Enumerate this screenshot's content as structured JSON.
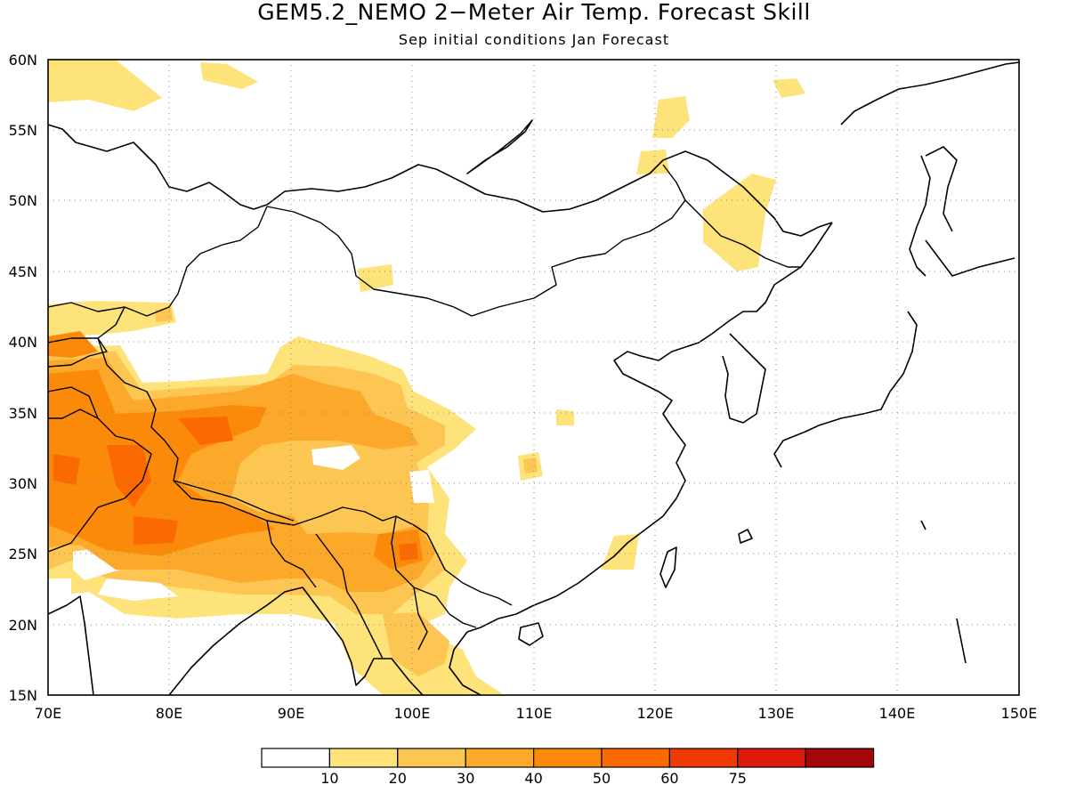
{
  "title": "GEM5.2_NEMO 2−Meter Air Temp. Forecast Skill",
  "subtitle": "Sep initial conditions  Jan Forecast",
  "map": {
    "lon_range": [
      70,
      150
    ],
    "lat_range": [
      15,
      60
    ],
    "lon_ticks": [
      "70E",
      "80E",
      "90E",
      "100E",
      "110E",
      "120E",
      "130E",
      "140E",
      "150E"
    ],
    "lat_ticks": [
      "60N",
      "55N",
      "50N",
      "45N",
      "40N",
      "35N",
      "30N",
      "25N",
      "20N",
      "15N"
    ],
    "grid": "dotted, every 10° longitude and 5° latitude",
    "hotspots": [
      {
        "region": "Pakistan / NW India",
        "lon": 77,
        "lat": 31,
        "level": "50-60"
      },
      {
        "region": "Tibetan Plateau",
        "lon": 83,
        "lat": 33.5,
        "level": "50-60"
      },
      {
        "region": "Myanmar",
        "lon": 99,
        "lat": 25,
        "level": "50-60"
      }
    ]
  },
  "colorbar": {
    "labels": [
      "10",
      "20",
      "30",
      "40",
      "50",
      "60",
      "75"
    ],
    "colors": [
      "#ffffff",
      "#fee27a",
      "#fdc552",
      "#fca82a",
      "#fb8a0a",
      "#fb6a00",
      "#f03a06",
      "#dc1a0a",
      "#a40608"
    ]
  }
}
